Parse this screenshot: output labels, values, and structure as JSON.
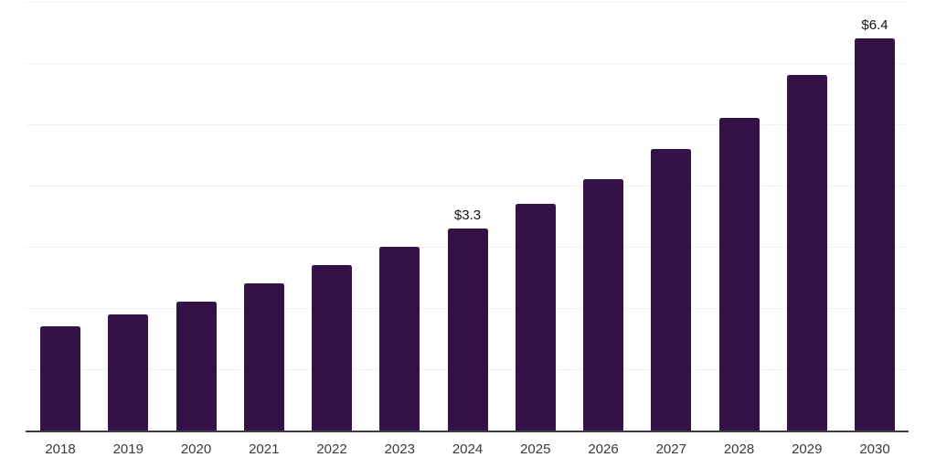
{
  "chart_data": {
    "type": "bar",
    "title": "",
    "xlabel": "",
    "ylabel": "",
    "categories": [
      "2018",
      "2019",
      "2020",
      "2021",
      "2022",
      "2023",
      "2024",
      "2025",
      "2026",
      "2027",
      "2028",
      "2029",
      "2030"
    ],
    "values": [
      1.7,
      1.9,
      2.1,
      2.4,
      2.7,
      3.0,
      3.3,
      3.7,
      4.1,
      4.6,
      5.1,
      5.8,
      6.4
    ],
    "data_labels": {
      "2024": "$3.3",
      "2030": "$6.4"
    },
    "ylim": [
      0,
      7
    ],
    "y_gridline_interval": 1,
    "grid_horizontal": true,
    "legend": "none",
    "y_axis_labels_visible": false,
    "colors": {
      "bar": "#351149",
      "gridline": "#f2f2f2",
      "axis_line": "#3d3d42",
      "tick_label": "#3a3a3a",
      "data_label": "#111111",
      "background": "#ffffff"
    }
  }
}
